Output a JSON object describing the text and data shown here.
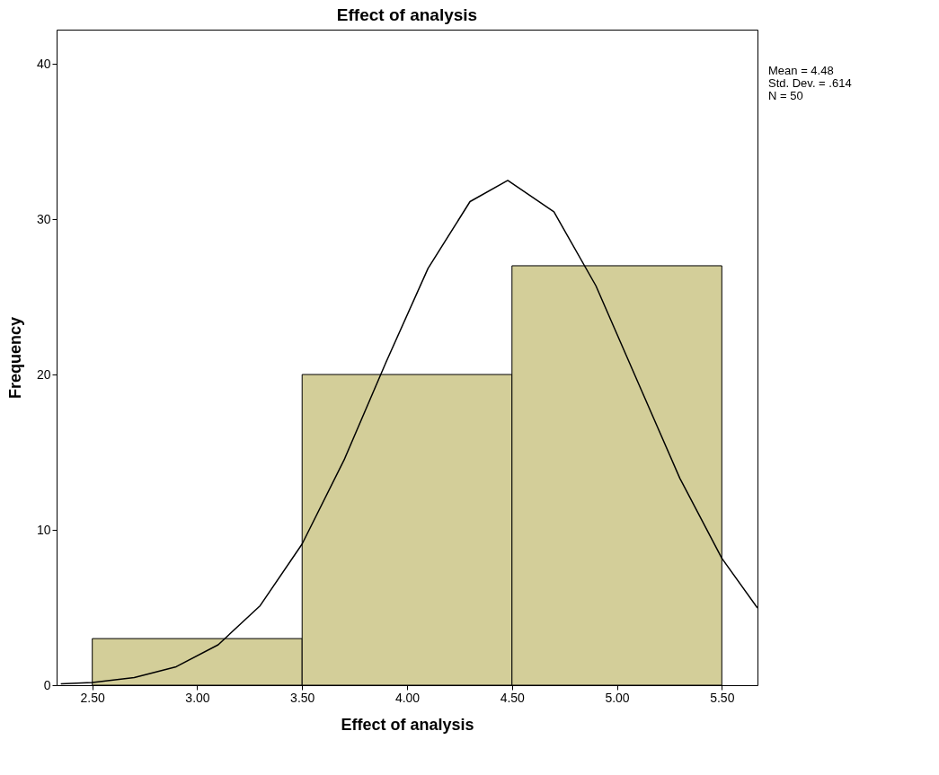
{
  "chart_data": {
    "type": "histogram",
    "title": "Effect of analysis",
    "xlabel": "Effect of analysis",
    "ylabel": "Frequency",
    "bins": [
      2.5,
      3.5,
      4.5,
      5.5
    ],
    "values": [
      3,
      20,
      27
    ],
    "color": "#d3ce99",
    "series": [
      {
        "type": "line",
        "color": "#000000",
        "x": [
          2.35,
          2.5,
          2.7,
          2.9,
          3.1,
          3.3,
          3.5,
          3.7,
          3.9,
          4.1,
          4.3,
          4.48,
          4.7,
          4.9,
          5.1,
          5.3,
          5.5,
          5.67
        ],
        "values": [
          0.08,
          0.18,
          0.49,
          1.19,
          2.6,
          5.12,
          9.09,
          14.5,
          20.8,
          26.83,
          31.13,
          32.49,
          30.47,
          25.71,
          19.51,
          13.32,
          8.17,
          4.97
        ]
      }
    ],
    "xlim": [
      2.33,
      5.67
    ],
    "xticks": [
      {
        "value": 2.5,
        "label": "2.50"
      },
      {
        "value": 3,
        "label": "3.00"
      },
      {
        "value": 3.5,
        "label": "3.50"
      },
      {
        "value": 4,
        "label": "4.00"
      },
      {
        "value": 4.5,
        "label": "4.50"
      },
      {
        "value": 5,
        "label": "5.00"
      },
      {
        "value": 5.5,
        "label": "5.50"
      }
    ],
    "ylim": [
      0,
      42.2
    ],
    "yticks": [
      0,
      10,
      20,
      30,
      40
    ],
    "annotations": [
      "Mean = 4.48",
      "Std. Dev. = .614",
      "N = 50"
    ]
  }
}
